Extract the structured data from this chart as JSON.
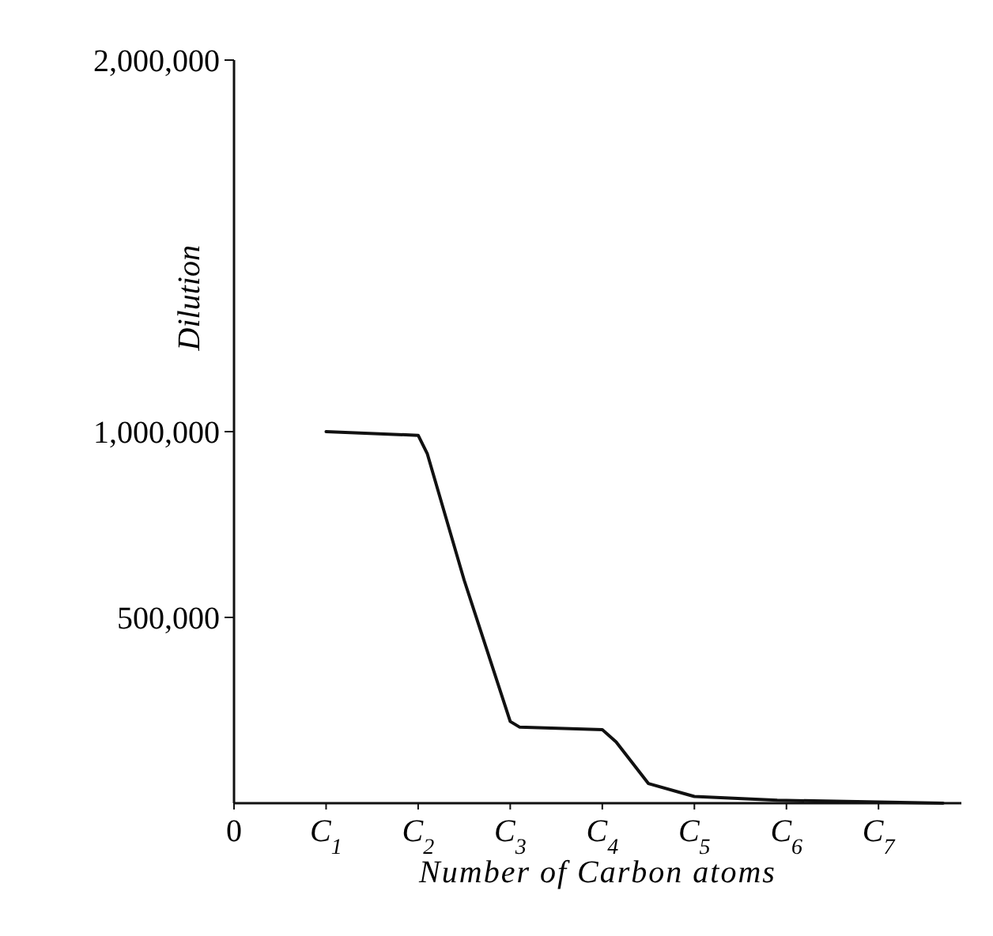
{
  "chart_data": {
    "type": "line",
    "xlabel": "Number of Carbon atoms",
    "ylabel": "Dilution",
    "x": [
      1,
      2,
      2.1,
      2.5,
      3,
      3.1,
      4,
      4.15,
      4.5,
      4.9,
      5,
      5.9,
      7,
      7.7
    ],
    "series": [
      {
        "color": "#111111",
        "values": [
          1000000,
          990000,
          940000,
          600000,
          220000,
          205000,
          198000,
          165000,
          53000,
          25000,
          18000,
          8000,
          3000,
          0
        ]
      }
    ],
    "xlim": [
      0,
      7.9
    ],
    "ylim": [
      0,
      2000000
    ],
    "xticks": [
      0,
      {
        "value": 1,
        "label": "C$_{1}$"
      },
      {
        "value": 2,
        "label": "C$_{2}$"
      },
      {
        "value": 3,
        "label": "C$_{3}$"
      },
      {
        "value": 4,
        "label": "C$_{4}$"
      },
      {
        "value": 5,
        "label": "C$_{5}$"
      },
      {
        "value": 6,
        "label": "C$_{6}$"
      },
      {
        "value": 7,
        "label": "C$_{7}$"
      }
    ],
    "yticks": [
      {
        "value": 500000,
        "label": "500,000"
      },
      {
        "value": 1000000,
        "label": "1,000,000"
      },
      {
        "value": 2000000,
        "label": "2,000,000"
      }
    ],
    "grid": false,
    "line_style": "solid"
  }
}
